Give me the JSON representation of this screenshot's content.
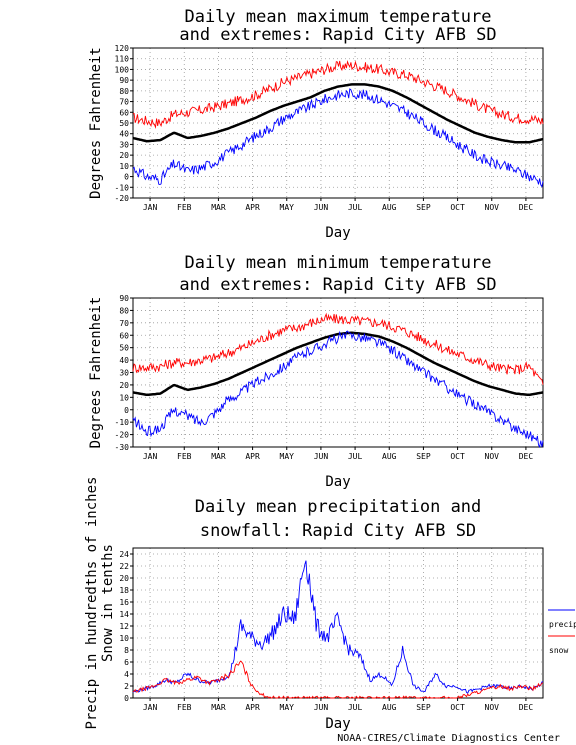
{
  "credit": "NOAA-CIRES/Climate Diagnostics Center",
  "chart_data": [
    {
      "type": "line",
      "title_lines": [
        "Daily mean maximum temperature",
        "and extremes: Rapid City AFB SD"
      ],
      "xlabel": "Day",
      "ylabel": "Degrees Fahrenheit",
      "ylim": [
        -20,
        120
      ],
      "yticks": [
        -20,
        -10,
        0,
        10,
        20,
        30,
        40,
        50,
        60,
        70,
        80,
        90,
        100,
        110,
        120
      ],
      "months": [
        "JAN",
        "FEB",
        "MAR",
        "APR",
        "MAY",
        "JUN",
        "JUL",
        "AUG",
        "SEP",
        "OCT",
        "NOV",
        "DEC"
      ],
      "grid": true,
      "series": [
        {
          "color": "#ff0000",
          "values": [
            55,
            52,
            50,
            58,
            60,
            62,
            65,
            68,
            72,
            76,
            82,
            88,
            92,
            96,
            100,
            103,
            104,
            102,
            100,
            97,
            95,
            90,
            85,
            80,
            74,
            68,
            62,
            58,
            55,
            54,
            52
          ]
        },
        {
          "color": "#000000",
          "values": [
            36,
            33,
            34,
            41,
            36,
            38,
            41,
            45,
            50,
            55,
            61,
            66,
            70,
            74,
            80,
            84,
            86,
            86,
            84,
            80,
            74,
            67,
            60,
            53,
            47,
            41,
            37,
            34,
            32,
            32,
            35
          ]
        },
        {
          "color": "#0000ff",
          "values": [
            8,
            0,
            -3,
            12,
            5,
            8,
            14,
            22,
            30,
            38,
            45,
            54,
            60,
            66,
            72,
            76,
            78,
            76,
            72,
            66,
            60,
            52,
            44,
            36,
            28,
            20,
            14,
            10,
            6,
            0,
            -5
          ]
        }
      ]
    },
    {
      "type": "line",
      "title_lines": [
        "Daily mean minimum temperature",
        "and extremes: Rapid City AFB SD"
      ],
      "xlabel": "Day",
      "ylabel": "Degrees Fahrenheit",
      "ylim": [
        -30,
        90
      ],
      "yticks": [
        -30,
        -20,
        -10,
        0,
        10,
        20,
        30,
        40,
        50,
        60,
        70,
        80,
        90
      ],
      "months": [
        "JAN",
        "FEB",
        "MAR",
        "APR",
        "MAY",
        "JUN",
        "JUL",
        "AUG",
        "SEP",
        "OCT",
        "NOV",
        "DEC"
      ],
      "grid": true,
      "series": [
        {
          "color": "#ff0000",
          "values": [
            34,
            34,
            35,
            38,
            38,
            40,
            42,
            46,
            50,
            55,
            60,
            64,
            66,
            70,
            73,
            73,
            72,
            71,
            70,
            67,
            63,
            58,
            53,
            48,
            44,
            40,
            36,
            33,
            32,
            35,
            20
          ]
        },
        {
          "color": "#000000",
          "values": [
            14,
            12,
            13,
            20,
            16,
            18,
            21,
            25,
            30,
            35,
            40,
            45,
            50,
            54,
            58,
            61,
            62,
            61,
            59,
            55,
            50,
            44,
            38,
            33,
            28,
            23,
            19,
            16,
            13,
            12,
            14
          ]
        },
        {
          "color": "#0000ff",
          "values": [
            -8,
            -18,
            -15,
            0,
            -5,
            -10,
            -2,
            8,
            15,
            22,
            28,
            35,
            42,
            48,
            53,
            58,
            60,
            58,
            54,
            48,
            40,
            32,
            25,
            18,
            10,
            5,
            -2,
            -8,
            -15,
            -20,
            -28
          ]
        }
      ]
    },
    {
      "type": "line",
      "title_lines": [
        "Daily mean precipitation and",
        "snowfall: Rapid City AFB SD"
      ],
      "xlabel": "Day",
      "ylabel_lines": [
        "Precip in hundredths of inches",
        "Snow in tenths"
      ],
      "ylim": [
        0,
        25
      ],
      "yticks": [
        0,
        2,
        4,
        6,
        8,
        10,
        12,
        14,
        16,
        18,
        20,
        22,
        24
      ],
      "months": [
        "JAN",
        "FEB",
        "MAR",
        "APR",
        "MAY",
        "JUN",
        "JUL",
        "AUG",
        "SEP",
        "OCT",
        "NOV",
        "DEC"
      ],
      "grid": true,
      "series": [
        {
          "name": "precip",
          "color": "#0000ff",
          "values": [
            1,
            1.5,
            2,
            3,
            2.5,
            4,
            3,
            2.5,
            3,
            4,
            12,
            10,
            9,
            11,
            14,
            13,
            24,
            12,
            10,
            13,
            8,
            7,
            3,
            4,
            2,
            8,
            2,
            1,
            4,
            2,
            2,
            1,
            1.5,
            2,
            2,
            1.5,
            2,
            1.5,
            2.5
          ]
        },
        {
          "name": "snow",
          "color": "#ff0000",
          "values": [
            1,
            1.5,
            2,
            3,
            2.5,
            3,
            3.5,
            2.5,
            3,
            4,
            6,
            2,
            0.5,
            0,
            0,
            0,
            0,
            0,
            0,
            0,
            0,
            0,
            0,
            0,
            0,
            0,
            0,
            0,
            0,
            0,
            0,
            0.5,
            1,
            1.5,
            2,
            1.5,
            2,
            1.5,
            2.5
          ]
        }
      ]
    }
  ]
}
